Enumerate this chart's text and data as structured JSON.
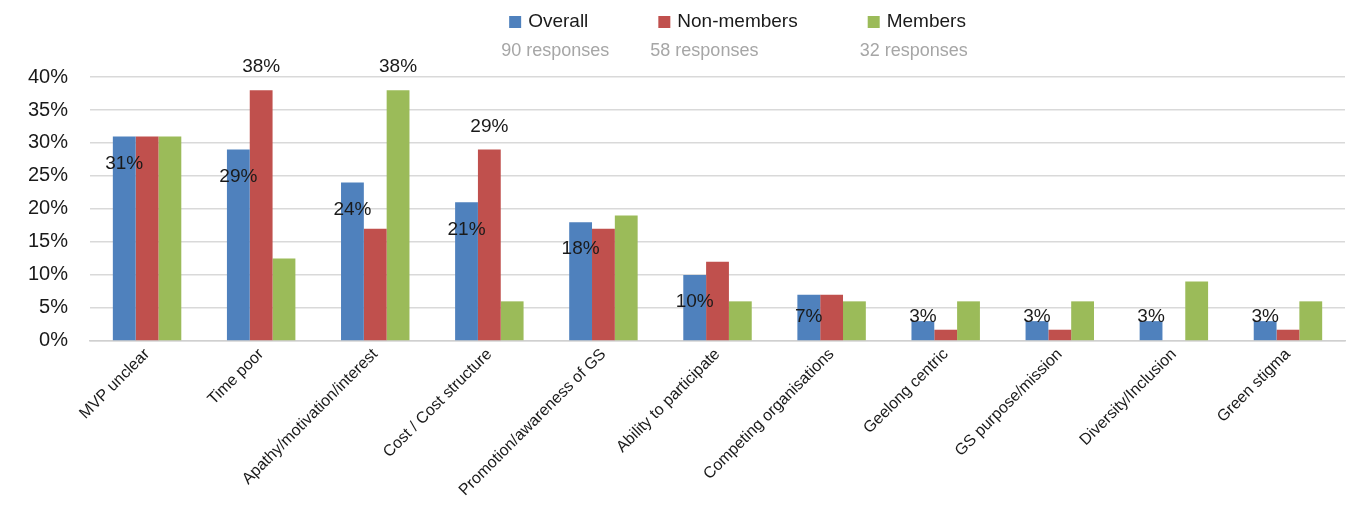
{
  "chart_data": {
    "type": "bar",
    "categories": [
      "MVP unclear",
      "Time poor",
      "Apathy/motivation/interest",
      "Cost / Cost structure",
      "Promotion/awareness of GS",
      "Ability to participate",
      "Competing organisations",
      "Geelong centric",
      "GS purpose/mission",
      "Diversity/Inclusion",
      "Green stigma"
    ],
    "series": [
      {
        "name": "Overall",
        "color": "#4f81bd",
        "values": [
          31,
          29,
          24,
          21,
          18,
          10,
          7,
          3,
          3,
          3,
          3
        ],
        "value_labels": [
          "31%",
          "29%",
          "24%",
          "21%",
          "18%",
          "10%",
          "7%",
          "3%",
          "3%",
          "3%",
          "3%"
        ]
      },
      {
        "name": "Non-members",
        "color": "#c0504d",
        "values": [
          31,
          38,
          17,
          29,
          17,
          12,
          7,
          1.7,
          1.7,
          0,
          1.7
        ],
        "value_labels": [
          null,
          "38%",
          null,
          "29%",
          null,
          null,
          null,
          null,
          null,
          null,
          null
        ]
      },
      {
        "name": "Members",
        "color": "#9bbb59",
        "values": [
          31,
          12.5,
          38,
          6,
          19,
          6,
          6,
          6,
          6,
          9,
          6
        ],
        "value_labels": [
          null,
          null,
          "38%",
          null,
          null,
          null,
          null,
          null,
          null,
          null,
          null
        ]
      }
    ],
    "ylim": [
      0,
      40
    ],
    "yticks": [
      {
        "value": 0,
        "label": "0%"
      },
      {
        "value": 5,
        "label": "5%"
      },
      {
        "value": 10,
        "label": "10%"
      },
      {
        "value": 15,
        "label": "15%"
      },
      {
        "value": 20,
        "label": "20%"
      },
      {
        "value": 25,
        "label": "25%"
      },
      {
        "value": 30,
        "label": "30%"
      },
      {
        "value": 35,
        "label": "35%"
      },
      {
        "value": 40,
        "label": "40%"
      }
    ],
    "grid": "y",
    "legend": "top",
    "annotations": [
      "90 responses",
      "58 responses",
      "32 responses"
    ]
  }
}
